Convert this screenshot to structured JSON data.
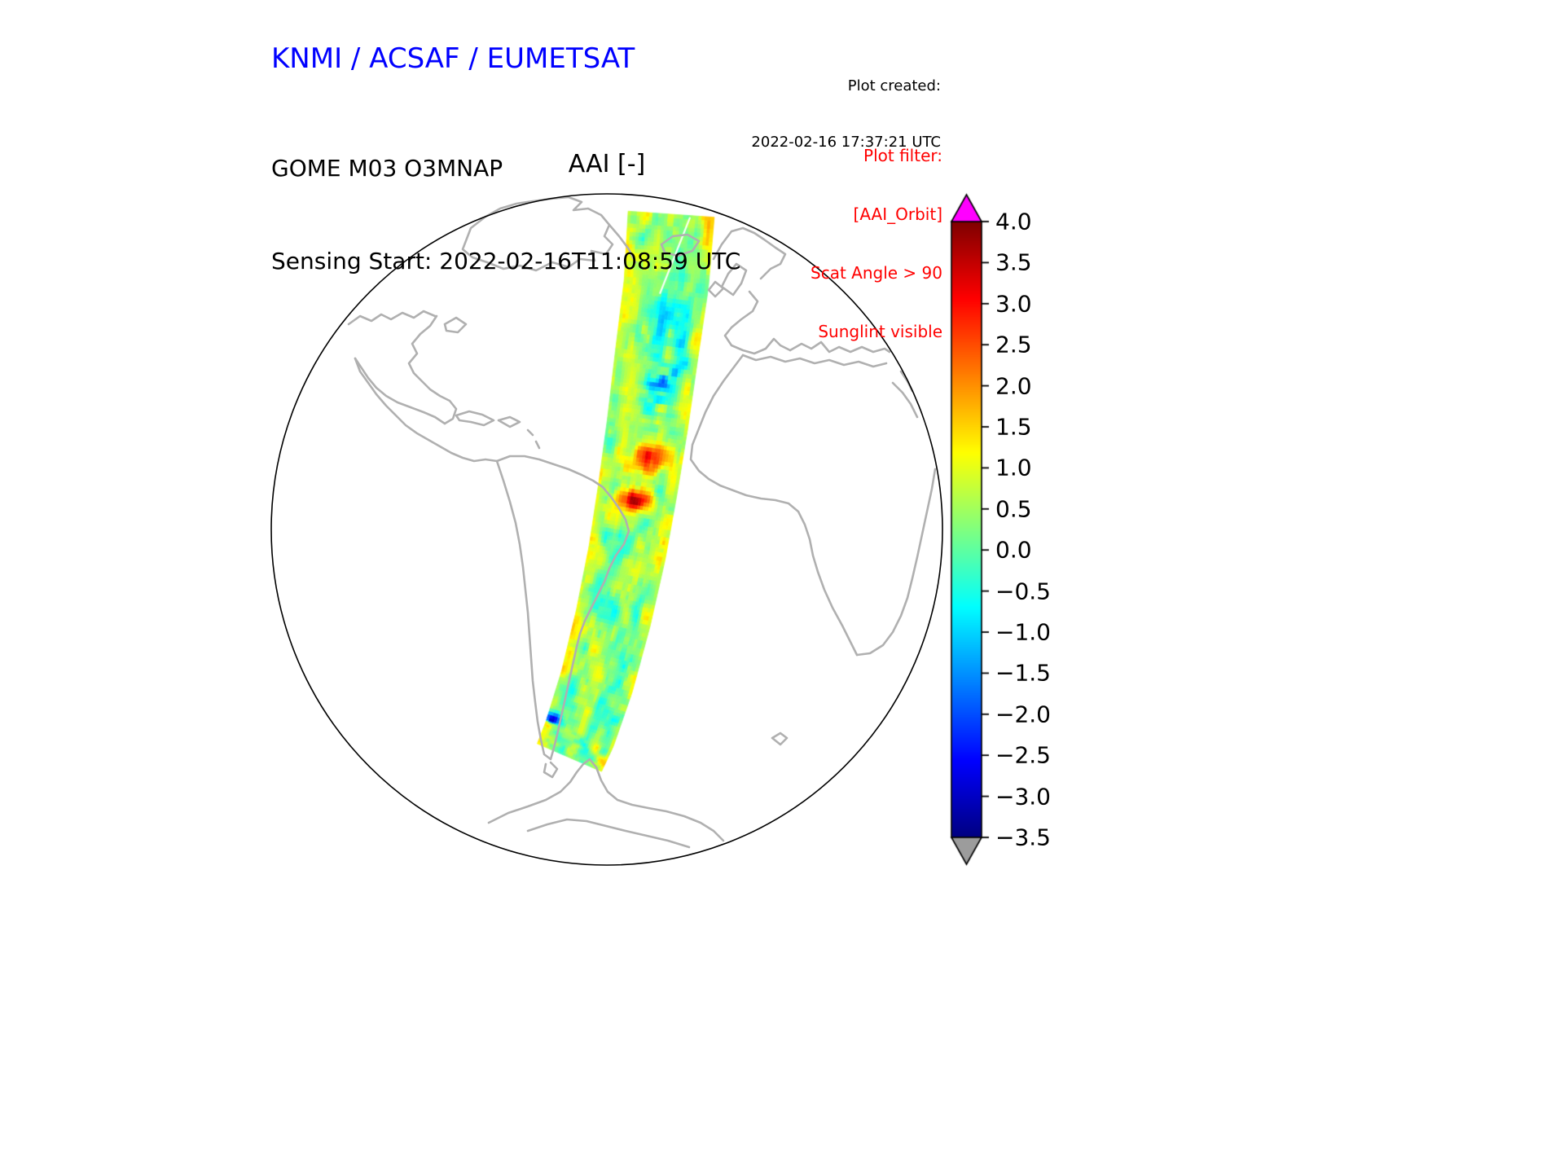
{
  "header": {
    "agency_title": "KNMI / ACSAF / EUMETSAT",
    "plot_created_label": "Plot created:",
    "plot_created_value": "2022-02-16 17:37:21 UTC",
    "product_line1": "GOME M03 O3MNAP",
    "sensing_start": "Sensing Start: 2022-02-16T11:08:59 UTC",
    "plot_filter": {
      "title": "Plot filter:",
      "lines": [
        "[AAI_Orbit]",
        "Scat Angle > 90",
        "Sunglint visible"
      ]
    }
  },
  "chart_data": {
    "type": "heatmap",
    "title": "AAI [-]",
    "variable": "Absorbing Aerosol Index (AAI)",
    "units": "[-]",
    "projection": "orthographic",
    "region": "Atlantic hemisphere: Greenland and Europe at top, Americas left, Africa right, Antarctica bottom",
    "swath": {
      "description": "Single descending satellite orbit swath crossing the globe from the Arctic down the Atlantic to Antarctica",
      "background_aai_range": [
        -1.0,
        1.5
      ],
      "hot_spot_values": [
        3.2,
        2.9
      ],
      "low_spot_values": [
        -1.8,
        -2.6
      ]
    },
    "colorbar": {
      "colormap": "jet",
      "orientation": "vertical",
      "position": "right",
      "vmin": -3.5,
      "vmax": 4.0,
      "ticks": [
        4.0,
        3.5,
        3.0,
        2.5,
        2.0,
        1.5,
        1.0,
        0.5,
        0.0,
        -0.5,
        -1.0,
        -1.5,
        -2.0,
        -2.5,
        -3.0,
        -3.5
      ],
      "over_color": "#ff00ff",
      "under_color": "#9c9c9c"
    },
    "colors": {
      "title_blue": "#0000ff",
      "filter_red": "#ff0000",
      "coastline_gray": "#b0b0b0",
      "globe_outline": "#000000",
      "background": "#ffffff"
    }
  }
}
